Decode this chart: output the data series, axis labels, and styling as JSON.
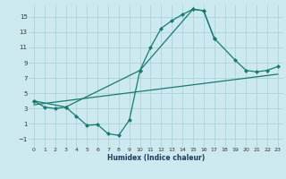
{
  "background_color": "#cce9f0",
  "grid_color": "#aacdd8",
  "line_color": "#1a7a6e",
  "xlabel": "Humidex (Indice chaleur)",
  "xlim": [
    -0.5,
    23.5
  ],
  "ylim": [
    -2.0,
    16.5
  ],
  "xticks": [
    0,
    1,
    2,
    3,
    4,
    5,
    6,
    7,
    8,
    9,
    10,
    11,
    12,
    13,
    14,
    15,
    16,
    17,
    18,
    19,
    20,
    21,
    22,
    23
  ],
  "yticks": [
    -1,
    1,
    3,
    5,
    7,
    9,
    11,
    13,
    15
  ],
  "line1_x": [
    0,
    1,
    2,
    3,
    4,
    5,
    6,
    7,
    8,
    9,
    10,
    11,
    12,
    13,
    14,
    15,
    16,
    17
  ],
  "line1_y": [
    4.0,
    3.2,
    3.0,
    3.2,
    2.0,
    0.8,
    0.9,
    -0.3,
    -0.5,
    1.5,
    8.0,
    11.0,
    13.5,
    14.5,
    15.3,
    16.0,
    15.8,
    12.2
  ],
  "line2_x": [
    0,
    3,
    10,
    15,
    16,
    17,
    19,
    20,
    21,
    22,
    23
  ],
  "line2_y": [
    4.0,
    3.2,
    8.0,
    16.0,
    15.8,
    12.2,
    9.3,
    8.0,
    7.8,
    8.0,
    8.5
  ],
  "line3_x": [
    0,
    23
  ],
  "line3_y": [
    3.5,
    7.5
  ],
  "markersize": 2.5,
  "linewidth": 0.9
}
